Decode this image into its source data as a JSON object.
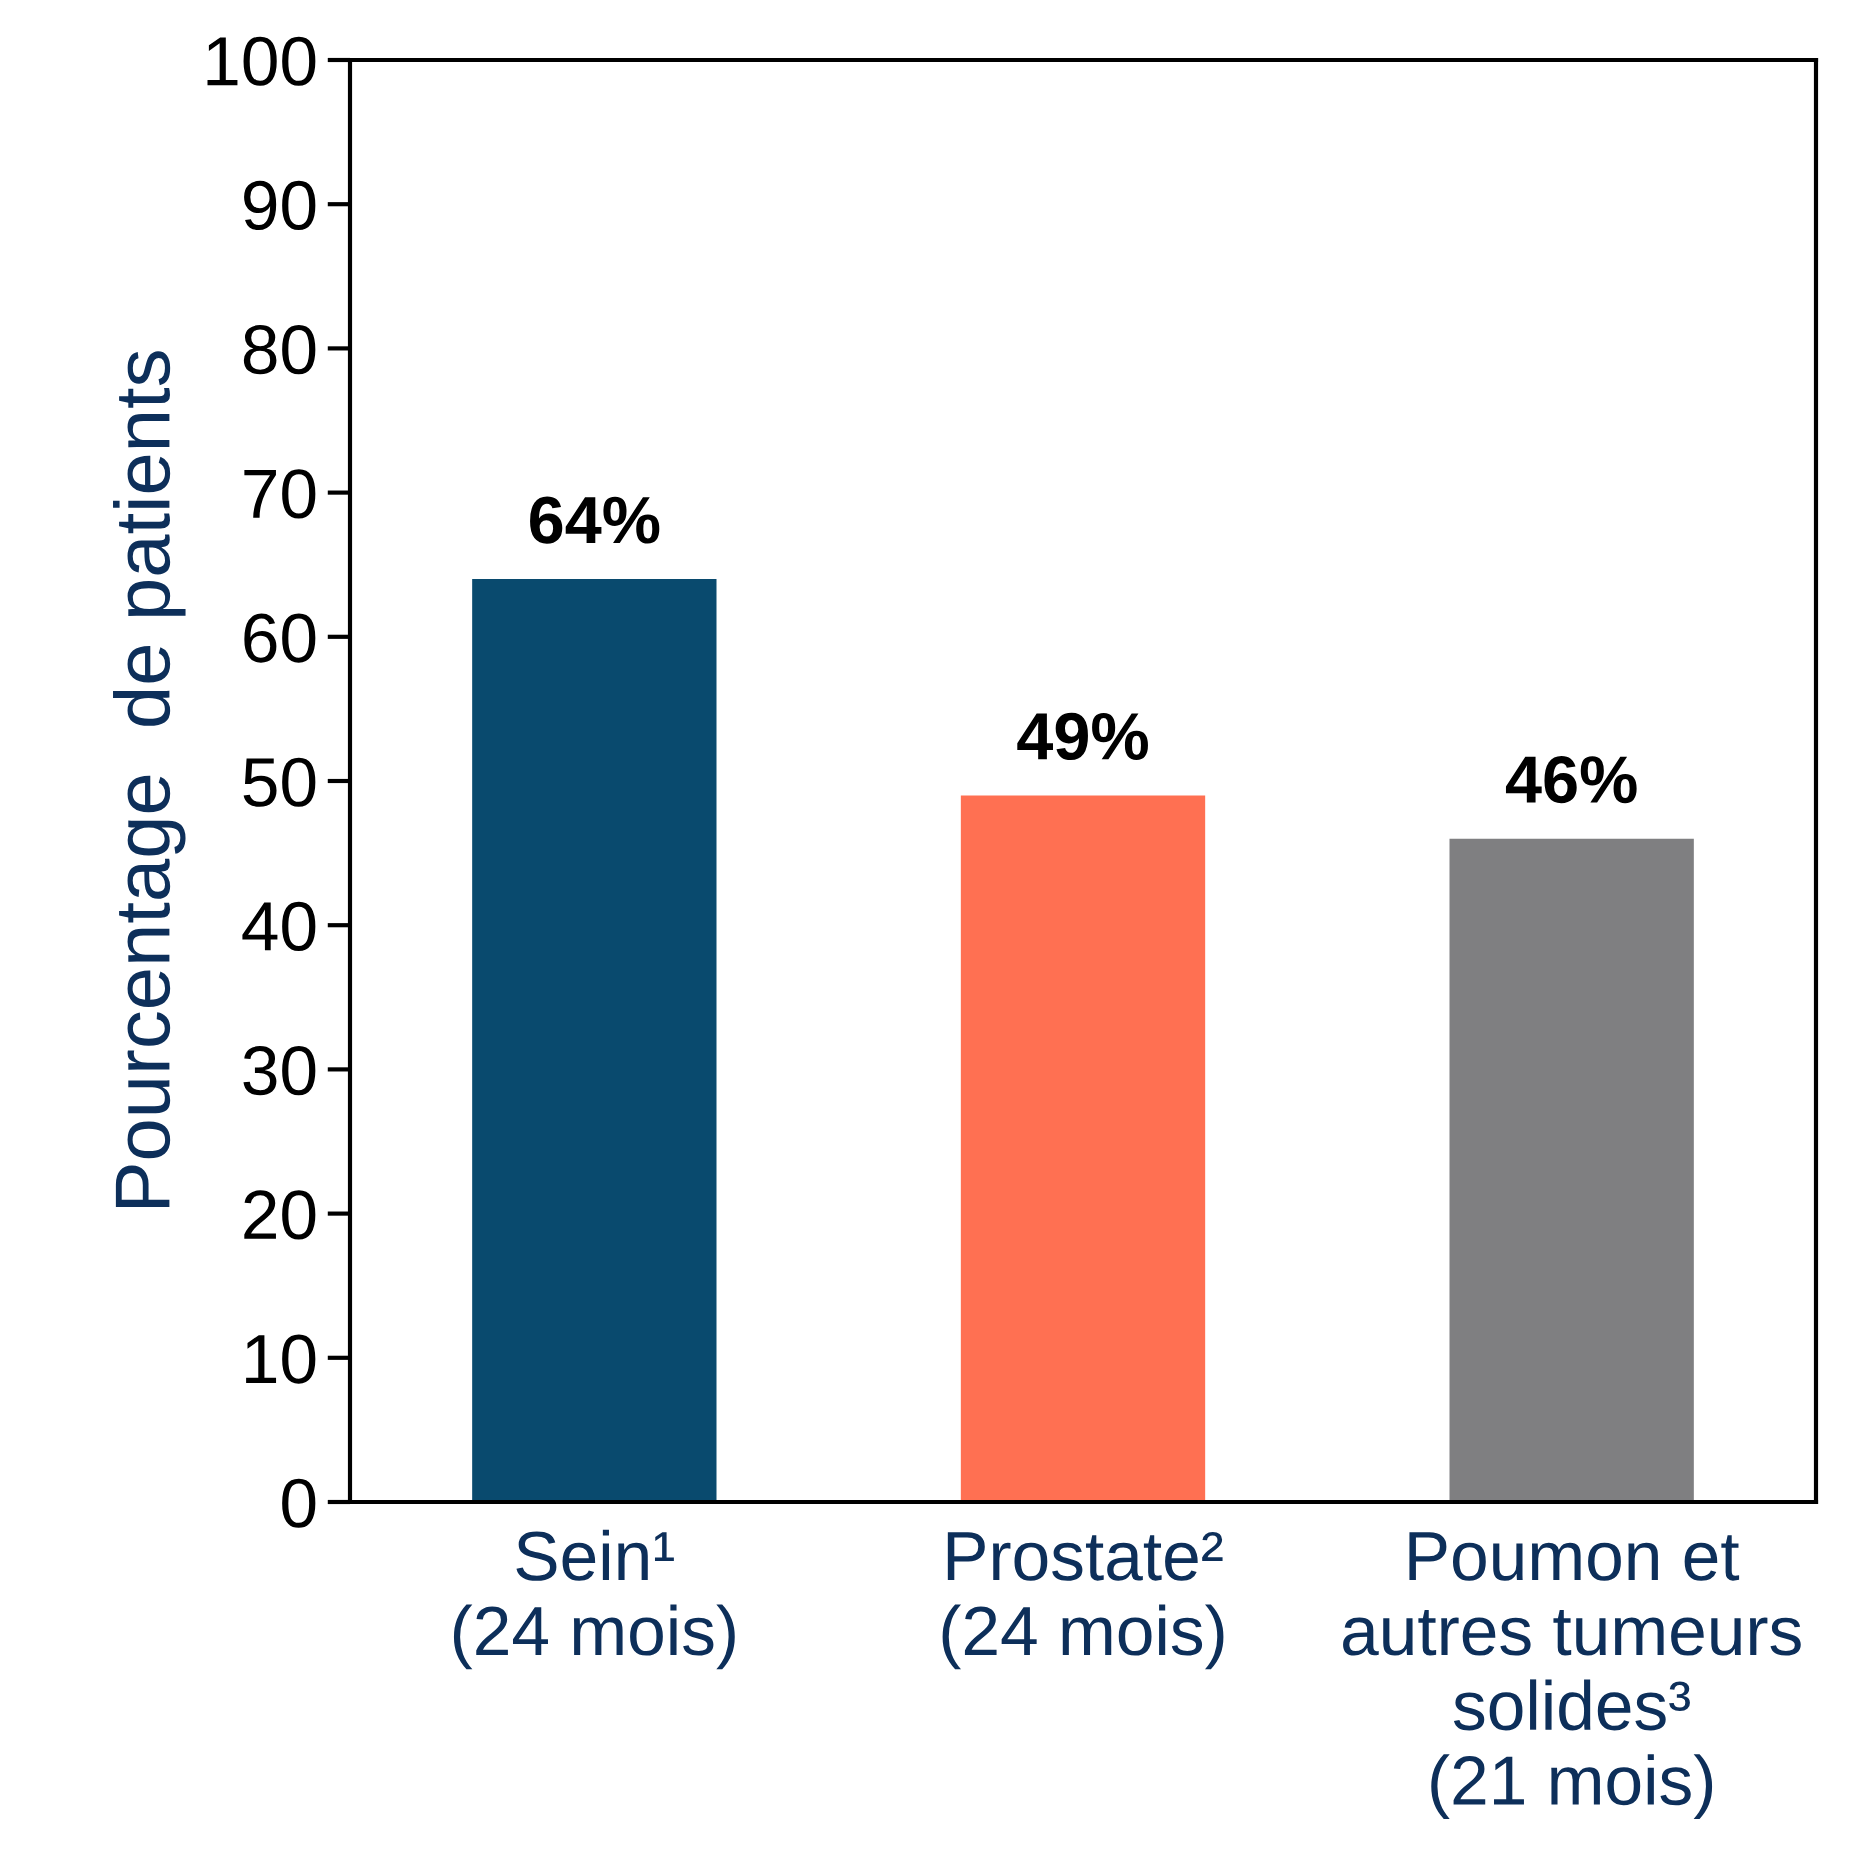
{
  "chart_data": {
    "type": "bar",
    "ylabel": "Pourcentage  de patients",
    "categories": [
      "Sein¹\n(24 mois)",
      "Prostate²\n(24 mois)",
      "Poumon et\nautres tumeurs\nsolides³\n(21 mois)"
    ],
    "values": [
      64,
      49,
      46
    ],
    "colors": [
      "#094a6e",
      "#ff7052",
      "#7f7f81"
    ],
    "value_labels": [
      "64%",
      "49%",
      "46%"
    ],
    "ylim": [
      0,
      100
    ],
    "yticks": [
      0,
      10,
      20,
      30,
      40,
      50,
      60,
      70,
      80,
      90,
      100
    ],
    "grid": false,
    "legend": false
  }
}
